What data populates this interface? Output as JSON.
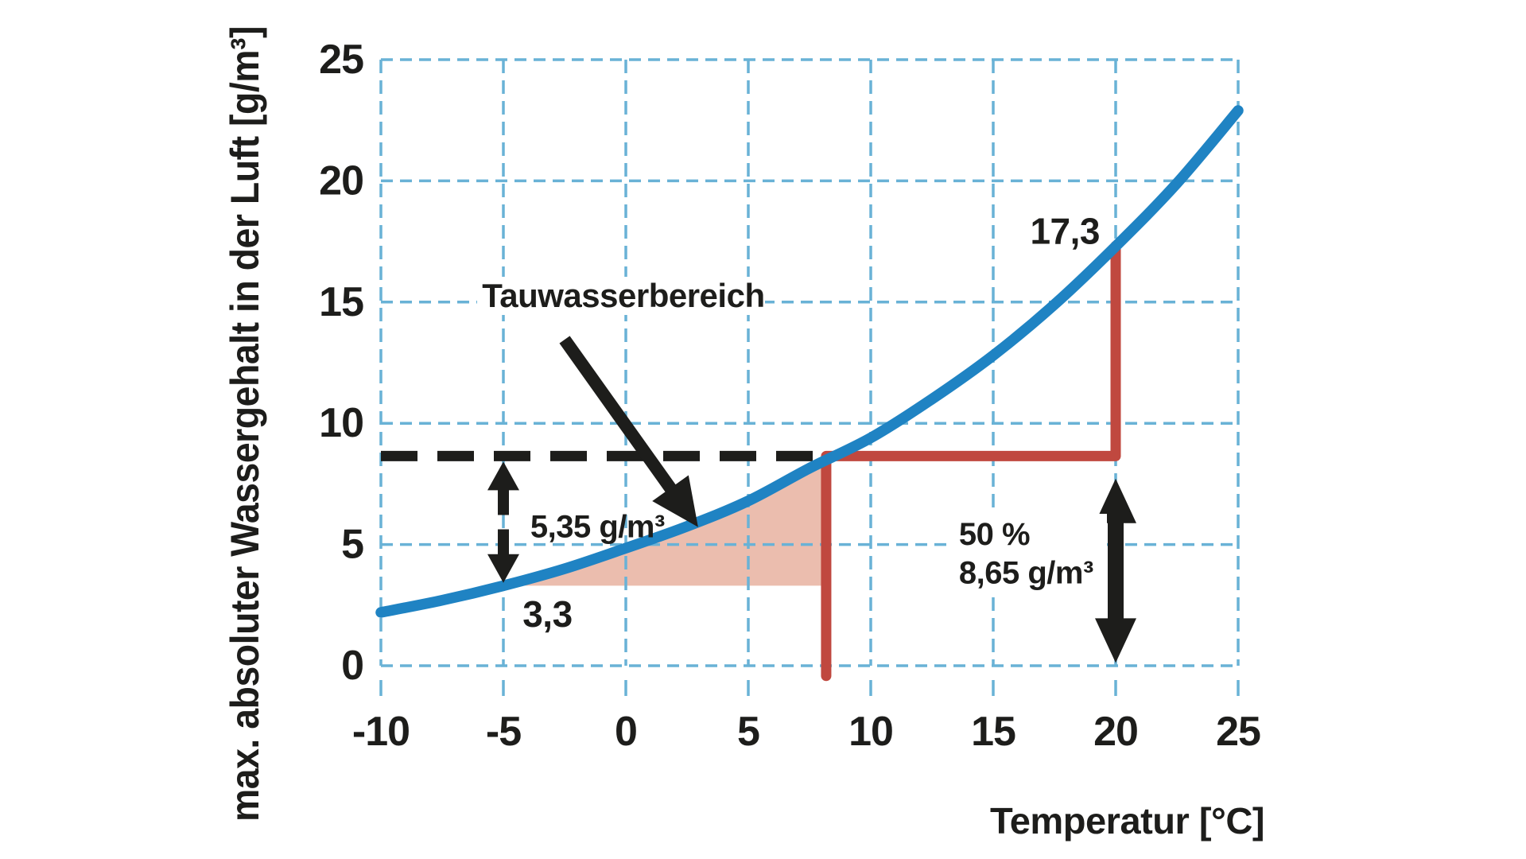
{
  "chart_data": {
    "type": "line",
    "title": "",
    "xlabel": "Temperatur [°C]",
    "ylabel": "max. absoluter Wassergehalt in der Luft [g/m³]",
    "xlim": [
      -10,
      25
    ],
    "ylim": [
      0,
      25
    ],
    "x_ticks": [
      -10,
      -5,
      0,
      5,
      10,
      15,
      20,
      25
    ],
    "y_ticks": [
      0,
      5,
      10,
      15,
      20,
      25
    ],
    "grid": "dashed",
    "legend": "none",
    "series": [
      {
        "x": [
          -10,
          -7.5,
          -5,
          -2.5,
          0,
          2.5,
          5,
          7.5,
          10,
          12.5,
          15,
          17.5,
          20,
          22.5,
          25
        ],
        "y": [
          2.2,
          2.7,
          3.3,
          4.0,
          4.85,
          5.75,
          6.8,
          8.15,
          9.4,
          11.0,
          12.8,
          14.9,
          17.3,
          19.9,
          22.9
        ]
      }
    ],
    "dew_line": {
      "y": 8.65,
      "x_start": -10,
      "x_end": 8.18
    },
    "red_construction_path": [
      [
        8.18,
        -0.42
      ],
      [
        8.18,
        8.65
      ],
      [
        20,
        8.65
      ],
      [
        20,
        17.32
      ]
    ],
    "shaded_region": {
      "x_start": -5,
      "x_end": 8.18,
      "y_base": 3.3
    },
    "arrows": {
      "pointer": {
        "from": [
          -2.5,
          13.45
        ],
        "to": [
          2.95,
          5.72
        ]
      },
      "small_double": {
        "x": -5,
        "y_bottom": 3.42,
        "y_top": 8.42
      },
      "large_double": {
        "x": 20,
        "y_bottom": 0.12,
        "y_top": 7.72
      }
    },
    "labels": {
      "tauwasserbereich": {
        "text": "Tauwasserbereich",
        "x": -0.1,
        "y": 15.28
      },
      "dew_point_value": {
        "text": "17,3",
        "x": 19.35,
        "y": 17.93
      },
      "difference_value": {
        "text": "5,35 g/m³",
        "x": -3.9,
        "y": 5.73
      },
      "curve_value_minus5": {
        "text": "3,3",
        "x": -3.2,
        "y": 2.13
      },
      "humidity_percent": {
        "text": "50 %",
        "x": 13.6,
        "y": 5.42
      },
      "humidity_absolute": {
        "text": "8,65 g/m³",
        "x": 13.6,
        "y": 3.82
      }
    }
  },
  "colors": {
    "curve_blue": "#1f83c3",
    "grid_blue": "#69b2d6",
    "construction_red": "#c0483f",
    "shade_pink": "#e7b2a0",
    "ink_black": "#1d1d1b",
    "background": "#ffffff"
  }
}
